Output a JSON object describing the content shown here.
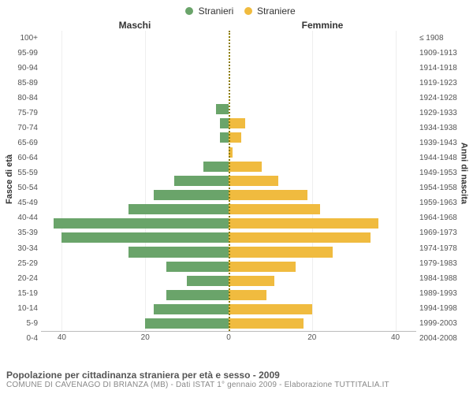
{
  "legend": {
    "male": {
      "label": "Stranieri",
      "color": "#6aa46a"
    },
    "female": {
      "label": "Straniere",
      "color": "#f0bb3f"
    }
  },
  "headers": {
    "male": "Maschi",
    "female": "Femmine"
  },
  "axis_titles": {
    "left": "Fasce di età",
    "right": "Anni di nascita"
  },
  "footer": {
    "title": "Popolazione per cittadinanza straniera per età e sesso - 2009",
    "subtitle": "COMUNE DI CAVENAGO DI BRIANZA (MB) - Dati ISTAT 1° gennaio 2009 - Elaborazione TUTTITALIA.IT"
  },
  "chart": {
    "type": "population-pyramid",
    "x_max": 45,
    "x_ticks": [
      0,
      20,
      40
    ],
    "background_color": "#ffffff",
    "grid_color": "#eeeeee",
    "center_line_color": "#8a7a00",
    "label_fontsize": 10,
    "tick_fontsize": 10,
    "rows": [
      {
        "age": "100+",
        "years": "≤ 1908",
        "m": 0,
        "f": 0
      },
      {
        "age": "95-99",
        "years": "1909-1913",
        "m": 0,
        "f": 0
      },
      {
        "age": "90-94",
        "years": "1914-1918",
        "m": 0,
        "f": 0
      },
      {
        "age": "85-89",
        "years": "1919-1923",
        "m": 0,
        "f": 0
      },
      {
        "age": "80-84",
        "years": "1924-1928",
        "m": 0,
        "f": 0
      },
      {
        "age": "75-79",
        "years": "1929-1933",
        "m": 3,
        "f": 0
      },
      {
        "age": "70-74",
        "years": "1934-1938",
        "m": 2,
        "f": 4
      },
      {
        "age": "65-69",
        "years": "1939-1943",
        "m": 2,
        "f": 3
      },
      {
        "age": "60-64",
        "years": "1944-1948",
        "m": 0,
        "f": 1
      },
      {
        "age": "55-59",
        "years": "1949-1953",
        "m": 6,
        "f": 8
      },
      {
        "age": "50-54",
        "years": "1954-1958",
        "m": 13,
        "f": 12
      },
      {
        "age": "45-49",
        "years": "1959-1963",
        "m": 18,
        "f": 19
      },
      {
        "age": "40-44",
        "years": "1964-1968",
        "m": 24,
        "f": 22
      },
      {
        "age": "35-39",
        "years": "1969-1973",
        "m": 42,
        "f": 36
      },
      {
        "age": "30-34",
        "years": "1974-1978",
        "m": 40,
        "f": 34
      },
      {
        "age": "25-29",
        "years": "1979-1983",
        "m": 24,
        "f": 25
      },
      {
        "age": "20-24",
        "years": "1984-1988",
        "m": 15,
        "f": 16
      },
      {
        "age": "15-19",
        "years": "1989-1993",
        "m": 10,
        "f": 11
      },
      {
        "age": "10-14",
        "years": "1994-1998",
        "m": 15,
        "f": 9
      },
      {
        "age": "5-9",
        "years": "1999-2003",
        "m": 18,
        "f": 20
      },
      {
        "age": "0-4",
        "years": "2004-2008",
        "m": 20,
        "f": 18
      }
    ]
  }
}
